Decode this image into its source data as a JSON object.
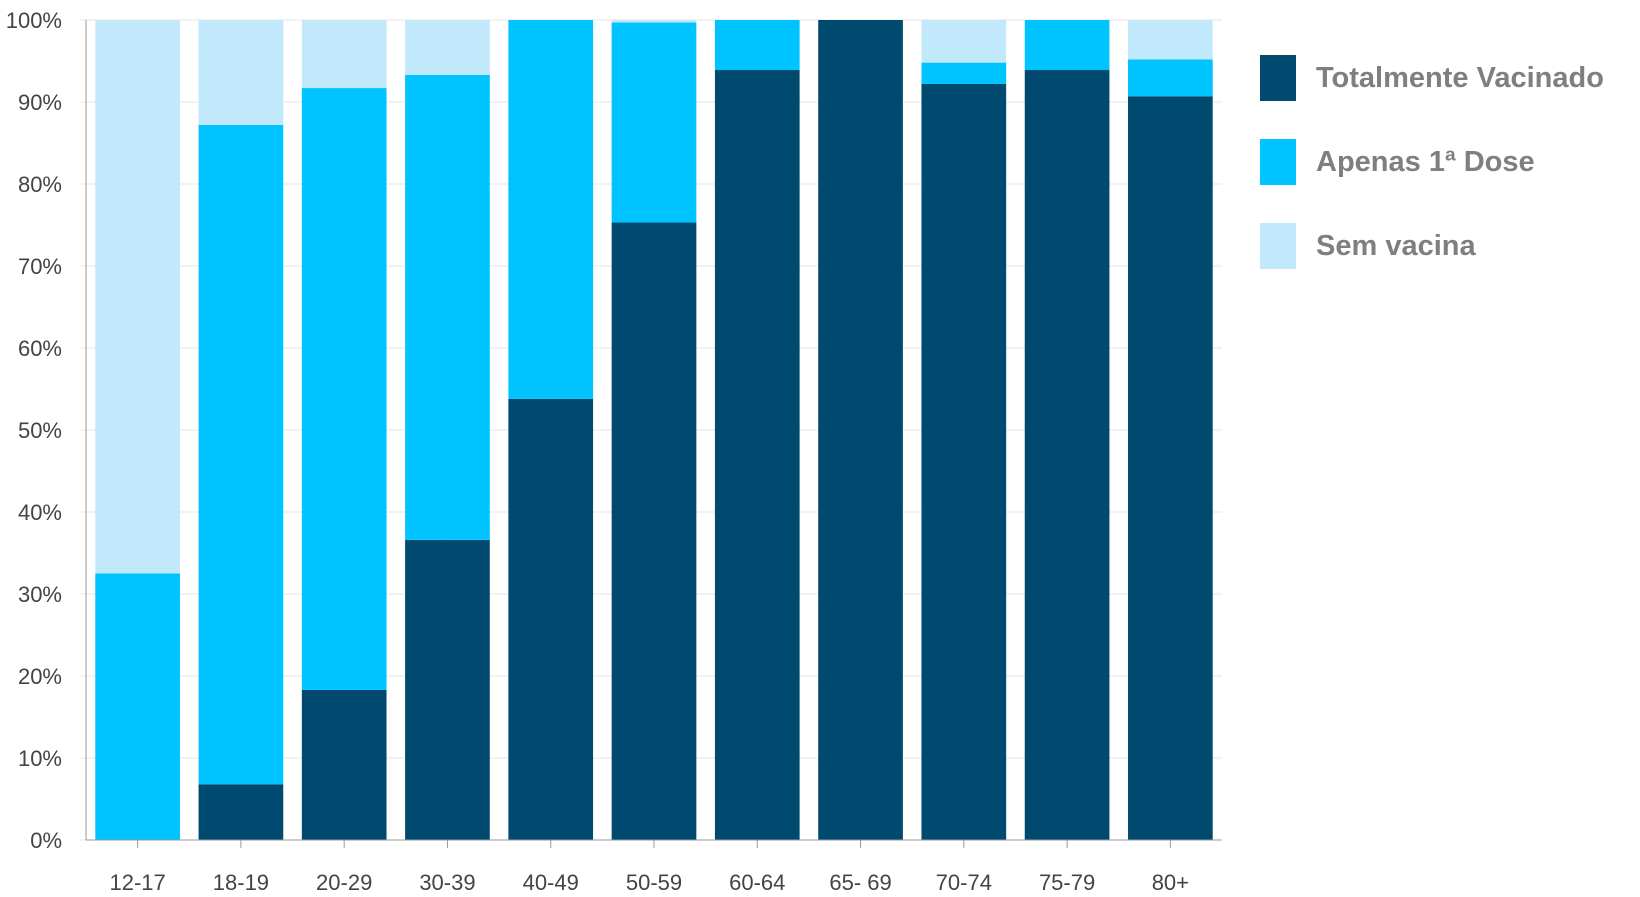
{
  "chart_data": {
    "type": "bar",
    "stacked": true,
    "categories": [
      "12-17",
      "18-19",
      "20-29",
      "30-39",
      "40-49",
      "50-59",
      "60-64",
      "65- 69",
      "70-74",
      "75-79",
      "80+"
    ],
    "series": [
      {
        "name": "Totalmente Vacinado",
        "color": "#004a70",
        "values": [
          0,
          6.8,
          18.3,
          36.6,
          53.8,
          75.3,
          93.9,
          100,
          92.2,
          93.9,
          90.7
        ]
      },
      {
        "name": "Apenas 1ª Dose",
        "color": "#00c4ff",
        "values": [
          32.5,
          80.4,
          73.4,
          56.7,
          46.2,
          24.4,
          6.1,
          0,
          2.6,
          6.1,
          4.5
        ]
      },
      {
        "name": "Sem vacina",
        "color": "#c2e8fc",
        "values": [
          67.5,
          12.8,
          8.3,
          6.7,
          0,
          0.3,
          0,
          0,
          5.2,
          0,
          4.8
        ]
      }
    ],
    "yticks": [
      "0%",
      "10%",
      "20%",
      "30%",
      "40%",
      "50%",
      "60%",
      "70%",
      "80%",
      "90%",
      "100%"
    ],
    "ylim": [
      0,
      100
    ],
    "grid": true,
    "legend_position": "right",
    "title": "",
    "xlabel": "",
    "ylabel": ""
  }
}
